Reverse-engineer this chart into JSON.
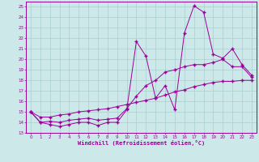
{
  "bg_color": "#cce8e8",
  "grid_color": "#aacfcf",
  "line_color": "#990099",
  "marker": "+",
  "xlabel": "Windchill (Refroidissement éolien,°C)",
  "xlabel_color": "#990099",
  "ylabel_ticks": [
    13,
    14,
    15,
    16,
    17,
    18,
    19,
    20,
    21,
    22,
    23,
    24,
    25
  ],
  "xticks": [
    0,
    1,
    2,
    3,
    4,
    5,
    6,
    7,
    8,
    9,
    10,
    11,
    12,
    13,
    14,
    15,
    16,
    17,
    18,
    19,
    20,
    21,
    22,
    23
  ],
  "xlim": [
    -0.5,
    23.5
  ],
  "ylim": [
    13,
    25.5
  ],
  "series1_x": [
    0,
    1,
    2,
    3,
    4,
    5,
    6,
    7,
    8,
    9,
    10,
    11,
    12,
    13,
    14,
    15,
    16,
    17,
    18,
    19,
    20,
    21,
    22,
    23
  ],
  "series1_y": [
    15,
    14,
    13.8,
    13.6,
    13.8,
    14.0,
    14.0,
    13.7,
    14.0,
    14.0,
    15.2,
    21.7,
    20.3,
    16.3,
    17.5,
    15.2,
    22.5,
    25.1,
    24.5,
    20.5,
    20.1,
    21.0,
    19.5,
    18.5
  ],
  "series2_x": [
    0,
    1,
    2,
    3,
    4,
    5,
    6,
    7,
    8,
    9,
    10,
    11,
    12,
    13,
    14,
    15,
    16,
    17,
    18,
    19,
    20,
    21,
    22,
    23
  ],
  "series2_y": [
    15,
    14.0,
    14.1,
    14.0,
    14.2,
    14.3,
    14.4,
    14.2,
    14.3,
    14.4,
    15.3,
    16.5,
    17.5,
    18.0,
    18.8,
    19.0,
    19.3,
    19.5,
    19.5,
    19.7,
    20.0,
    19.3,
    19.3,
    18.3
  ],
  "series3_x": [
    0,
    1,
    2,
    3,
    4,
    5,
    6,
    7,
    8,
    9,
    10,
    11,
    12,
    13,
    14,
    15,
    16,
    17,
    18,
    19,
    20,
    21,
    22,
    23
  ],
  "series3_y": [
    15,
    14.5,
    14.5,
    14.7,
    14.8,
    15.0,
    15.1,
    15.2,
    15.3,
    15.5,
    15.7,
    15.9,
    16.1,
    16.3,
    16.6,
    16.9,
    17.1,
    17.4,
    17.6,
    17.8,
    17.9,
    17.9,
    18.0,
    18.0
  ]
}
